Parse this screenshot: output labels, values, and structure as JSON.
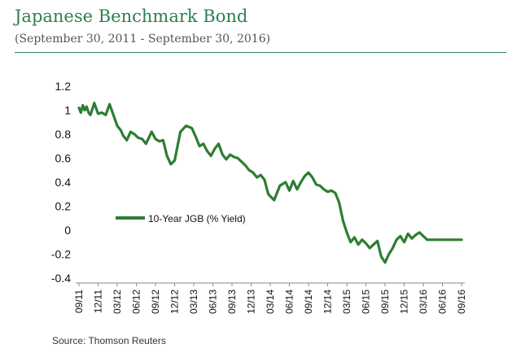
{
  "header": {
    "title": "Japanese Benchmark Bond",
    "subtitle": "(September 30, 2011 - September 30, 2016)"
  },
  "footer": {
    "source": "Source: Thomson Reuters"
  },
  "chart_data": {
    "type": "line",
    "title": "Japanese Benchmark Bond",
    "subtitle": "(September 30, 2011 - September 30, 2016)",
    "xlabel": "",
    "ylabel": "",
    "ylim": [
      -0.4,
      1.2
    ],
    "yticks": [
      "1.2",
      "1",
      "0.8",
      "0.6",
      "0.4",
      "0.2",
      "0",
      "-0.2",
      "-0.4"
    ],
    "xticks": [
      "09/11",
      "12/11",
      "03/12",
      "06/12",
      "09/12",
      "12/12",
      "03/13",
      "06/13",
      "09/13",
      "12/13",
      "03/14",
      "06/14",
      "09/14",
      "12/14",
      "03/15",
      "06/15",
      "09/15",
      "12/15",
      "03/16",
      "06/16",
      "09/16"
    ],
    "grid": false,
    "legend_position": "left-middle",
    "series_color": "#2e7d32",
    "series": [
      {
        "name": "10-Year JGB (% Yield)",
        "x": [
          0,
          0.1,
          0.2,
          0.3,
          0.4,
          0.5,
          0.6,
          0.8,
          1.0,
          1.2,
          1.4,
          1.6,
          1.8,
          2.0,
          2.2,
          2.3,
          2.5,
          2.7,
          2.9,
          3.1,
          3.3,
          3.5,
          3.8,
          4.0,
          4.2,
          4.4,
          4.6,
          4.8,
          5.0,
          5.3,
          5.6,
          5.9,
          6.1,
          6.3,
          6.5,
          6.7,
          6.9,
          7.1,
          7.3,
          7.5,
          7.7,
          7.9,
          8.1,
          8.3,
          8.5,
          8.7,
          8.9,
          9.1,
          9.3,
          9.5,
          9.7,
          9.9,
          10.2,
          10.5,
          10.8,
          11.0,
          11.2,
          11.4,
          11.6,
          11.8,
          12.0,
          12.2,
          12.4,
          12.6,
          12.8,
          13.0,
          13.2,
          13.4,
          13.6,
          13.8,
          14.0,
          14.2,
          14.4,
          14.6,
          14.8,
          15.0,
          15.2,
          15.4,
          15.6,
          15.8,
          16.0,
          16.2,
          16.4,
          16.6,
          16.8,
          17.0,
          17.2,
          17.4,
          17.6,
          17.8,
          18.0,
          18.2,
          18.4,
          18.6,
          18.8,
          19.0,
          19.2,
          19.4,
          19.5,
          19.6,
          19.8,
          20.0
        ],
        "values": [
          1.02,
          0.98,
          1.04,
          1.0,
          1.03,
          0.98,
          0.96,
          1.06,
          0.97,
          0.98,
          0.96,
          1.05,
          0.96,
          0.87,
          0.83,
          0.79,
          0.75,
          0.82,
          0.8,
          0.77,
          0.76,
          0.72,
          0.82,
          0.76,
          0.74,
          0.75,
          0.62,
          0.55,
          0.58,
          0.82,
          0.87,
          0.85,
          0.78,
          0.7,
          0.72,
          0.66,
          0.62,
          0.68,
          0.72,
          0.63,
          0.59,
          0.63,
          0.61,
          0.6,
          0.57,
          0.54,
          0.5,
          0.48,
          0.44,
          0.46,
          0.42,
          0.3,
          0.25,
          0.37,
          0.4,
          0.33,
          0.41,
          0.34,
          0.4,
          0.45,
          0.48,
          0.44,
          0.38,
          0.37,
          0.34,
          0.32,
          0.33,
          0.31,
          0.23,
          0.08,
          -0.02,
          -0.1,
          -0.06,
          -0.12,
          -0.08,
          -0.11,
          -0.15,
          -0.12,
          -0.09,
          -0.22,
          -0.27,
          -0.2,
          -0.15,
          -0.08,
          -0.05,
          -0.1,
          -0.03,
          -0.07,
          -0.04,
          -0.02,
          -0.05,
          -0.08,
          -0.08,
          -0.08,
          -0.08,
          -0.08,
          -0.08,
          -0.08,
          -0.08,
          -0.08,
          -0.08,
          -0.08
        ]
      }
    ]
  }
}
